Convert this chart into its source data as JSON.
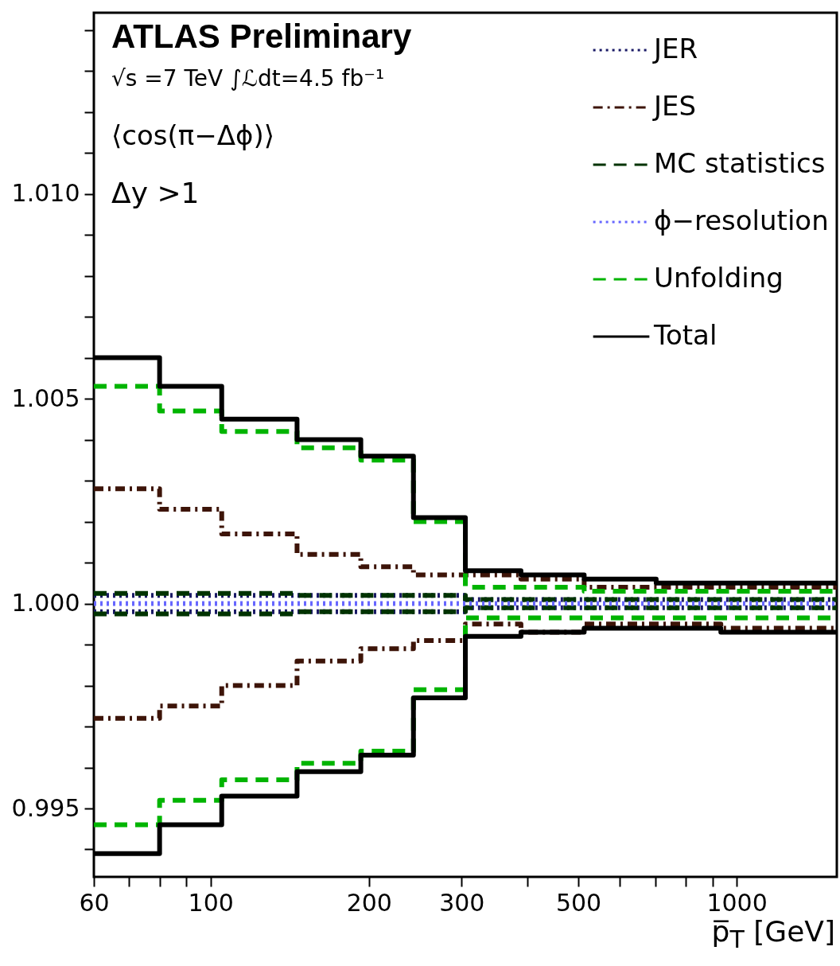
{
  "chart_data": {
    "type": "step",
    "title": "ATLAS Preliminary",
    "annotations": [
      "√s =7 TeV ∫ℒdt=4.5 fb⁻¹",
      "⟨cos(π−Δϕ)⟩",
      "Δy >1"
    ],
    "xlabel": "p̅$_{T}$ [GeV]",
    "x": [
      60,
      80,
      105,
      146,
      193,
      243,
      305,
      389,
      513,
      703,
      933
    ],
    "series": [
      {
        "name": "JER",
        "color": "#1a1a66",
        "line_style": "dotted",
        "values": [
          1.0002,
          1.0002,
          1.0002,
          1.0002,
          1.0002,
          1.0002,
          1.0001,
          1.0001,
          1.0001,
          1.0001,
          1.0001
        ]
      },
      {
        "color": "#1a1a66",
        "line_style": "dotted",
        "values": [
          0.9998,
          0.9998,
          0.9998,
          0.9998,
          0.9998,
          0.9998,
          0.9999,
          0.9999,
          0.9999,
          0.9999,
          0.9999
        ]
      },
      {
        "name": "JES",
        "color": "#3d1408",
        "line_style": "dashdot",
        "values": [
          1.0028,
          1.0023,
          1.0017,
          1.0012,
          1.0009,
          1.0007,
          1.0007,
          1.0006,
          1.0004,
          1.0004,
          1.0004
        ]
      },
      {
        "color": "#3d1408",
        "line_style": "dashdot",
        "values": [
          0.9972,
          0.9975,
          0.998,
          0.9986,
          0.9989,
          0.9991,
          0.9995,
          0.9993,
          0.9995,
          0.9995,
          0.9994
        ]
      },
      {
        "name": "MC statistics",
        "color": "#003300",
        "line_style": "dashed",
        "values": [
          1.00025,
          1.00025,
          1.00025,
          1.0002,
          1.0002,
          1.0002,
          1.0001,
          1.0001,
          1.0001,
          1.0001,
          1.0001
        ]
      },
      {
        "color": "#003300",
        "line_style": "dashed",
        "values": [
          0.99975,
          0.99975,
          0.99975,
          0.9998,
          0.9998,
          0.9998,
          0.9999,
          0.9999,
          0.9999,
          0.9999,
          0.9999
        ]
      },
      {
        "name": "ϕ−resolution",
        "color": "#6666ff",
        "line_style": "dotted",
        "values": [
          1,
          1,
          1,
          1,
          1,
          1,
          1,
          1,
          1,
          1,
          1
        ]
      },
      {
        "name": "Unfolding",
        "color": "#00b400",
        "line_style": "dashed",
        "values": [
          1.0053,
          1.0047,
          1.0042,
          1.0038,
          1.0035,
          1.002,
          1.0004,
          1.0004,
          1.0003,
          1.0003,
          1.0003
        ]
      },
      {
        "color": "#00b400",
        "line_style": "dashed",
        "values": [
          0.9946,
          0.9952,
          0.9957,
          0.9961,
          0.9964,
          0.9979,
          0.99965,
          0.99965,
          0.99965,
          0.99965,
          0.99965
        ]
      },
      {
        "name": "Total",
        "color": "#000000",
        "line_style": "solid",
        "values": [
          1.006,
          1.0053,
          1.0045,
          1.004,
          1.0036,
          1.0021,
          1.0008,
          1.0007,
          1.0006,
          1.0005,
          1.0005
        ]
      },
      {
        "color": "#000000",
        "line_style": "solid",
        "values": [
          0.9939,
          0.9946,
          0.9953,
          0.9959,
          0.9963,
          0.9977,
          0.9992,
          0.9993,
          0.9994,
          0.9994,
          0.9993
        ]
      }
    ],
    "xlim": [
      60,
      1550
    ],
    "log": "x",
    "xticks": [
      60,
      {
        "value": 70,
        "label": null
      },
      {
        "value": 80,
        "label": null
      },
      {
        "value": 90,
        "label": null
      },
      100,
      200,
      300,
      {
        "value": 400,
        "label": null
      },
      500,
      {
        "value": 600,
        "label": null
      },
      {
        "value": 700,
        "label": null
      },
      {
        "value": 800,
        "label": null
      },
      {
        "value": 900,
        "label": null
      },
      1000
    ],
    "ylim": [
      0.99333,
      1.01442
    ],
    "yticks": [
      {
        "value": 0.994,
        "label": null
      },
      0.995,
      {
        "value": 0.996,
        "label": null
      },
      {
        "value": 0.997,
        "label": null
      },
      {
        "value": 0.998,
        "label": null
      },
      {
        "value": 0.999,
        "label": null
      },
      {
        "value": 1,
        "label": "1.000"
      },
      {
        "value": 1.001,
        "label": null
      },
      {
        "value": 1.002,
        "label": null
      },
      {
        "value": 1.003,
        "label": null
      },
      {
        "value": 1.004,
        "label": null
      },
      1.005,
      {
        "value": 1.006,
        "label": null
      },
      {
        "value": 1.007,
        "label": null
      },
      {
        "value": 1.008,
        "label": null
      },
      {
        "value": 1.009,
        "label": null
      },
      {
        "value": 1.01,
        "label": "1.010"
      },
      {
        "value": 1.011,
        "label": null
      },
      {
        "value": 1.012,
        "label": null
      },
      {
        "value": 1.013,
        "label": null
      },
      {
        "value": 1.014,
        "label": null
      }
    ],
    "grid": false,
    "legend": "top right"
  }
}
